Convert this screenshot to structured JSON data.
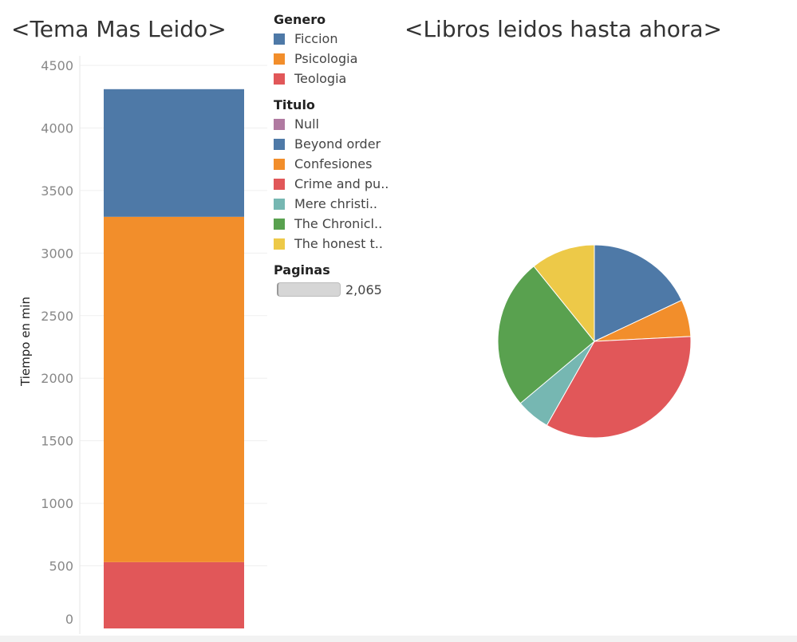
{
  "bar_title": "<Tema Mas Leido>",
  "pie_title": "<Libros leidos hasta ahora>",
  "legend": {
    "genero": {
      "title": "Genero",
      "items": [
        {
          "label": "Ficcion",
          "color": "#4e79a7"
        },
        {
          "label": "Psicologia",
          "color": "#f28e2b"
        },
        {
          "label": "Teologia",
          "color": "#e15759"
        }
      ]
    },
    "titulo": {
      "title": "Titulo",
      "items": [
        {
          "label": "Null",
          "color": "#b07aa1"
        },
        {
          "label": "Beyond order",
          "color": "#4e79a7"
        },
        {
          "label": "Confesiones",
          "color": "#f28e2b"
        },
        {
          "label": "Crime and pu..",
          "color": "#e15759"
        },
        {
          "label": "Mere christi..",
          "color": "#76b7b2"
        },
        {
          "label": "The Chronicl..",
          "color": "#59a14f"
        },
        {
          "label": "The honest t..",
          "color": "#edc948"
        }
      ]
    },
    "paginas": {
      "title": "Paginas",
      "value": "2,065"
    }
  },
  "chart_data": [
    {
      "type": "bar",
      "title": "<Tema Mas Leido>",
      "ylabel": "Tiempo en min",
      "ylim": [
        0,
        4500
      ],
      "yticks": [
        "0",
        "500",
        "1000",
        "1500",
        "2000",
        "2500",
        "3000",
        "3500",
        "4000",
        "4500"
      ],
      "categories": [
        ""
      ],
      "stacked": true,
      "series": [
        {
          "name": "Teologia",
          "values": [
            530
          ],
          "color": "#e15759"
        },
        {
          "name": "Psicologia",
          "values": [
            2760
          ],
          "color": "#f28e2b"
        },
        {
          "name": "Ficcion",
          "values": [
            1020
          ],
          "color": "#4e79a7"
        }
      ],
      "grid": true
    },
    {
      "type": "pie",
      "title": "<Libros leidos hasta ahora>",
      "slices": [
        {
          "label": "Beyond order",
          "value": 18.0,
          "color": "#4e79a7"
        },
        {
          "label": "Confesiones",
          "value": 6.2,
          "color": "#f28e2b"
        },
        {
          "label": "Crime and pu..",
          "value": 34.0,
          "color": "#e15759"
        },
        {
          "label": "Mere christi..",
          "value": 5.7,
          "color": "#76b7b2"
        },
        {
          "label": "The Chronicl..",
          "value": 25.3,
          "color": "#59a14f"
        },
        {
          "label": "The honest t..",
          "value": 10.8,
          "color": "#edc948"
        }
      ]
    }
  ]
}
